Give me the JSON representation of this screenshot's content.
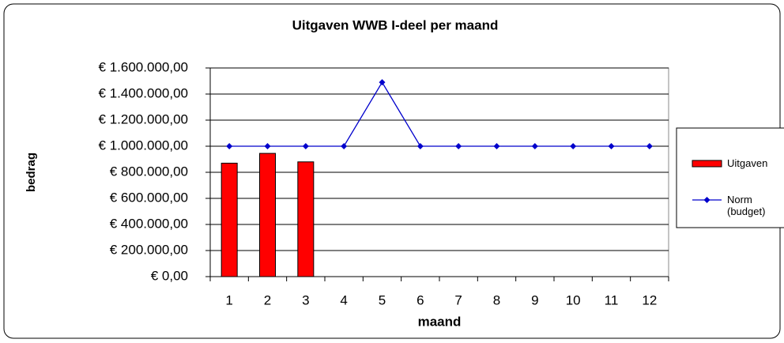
{
  "chart_data": {
    "type": "bar",
    "title": "Uitgaven WWB I-deel per maand",
    "x_label": "maand",
    "y_label": "bedrag",
    "categories": [
      "1",
      "2",
      "3",
      "4",
      "5",
      "6",
      "7",
      "8",
      "9",
      "10",
      "11",
      "12"
    ],
    "series": [
      {
        "name": "Uitgaven",
        "type": "bar",
        "color": "#ff0000",
        "values": [
          870000,
          945000,
          880000,
          null,
          null,
          null,
          null,
          null,
          null,
          null,
          null,
          null
        ]
      },
      {
        "name": "Norm (budget)",
        "type": "line",
        "color": "#0000cc",
        "values": [
          1000000,
          1000000,
          1000000,
          1000000,
          1490000,
          1000000,
          1000000,
          1000000,
          1000000,
          1000000,
          1000000,
          1000000
        ]
      }
    ],
    "ylim": [
      0,
      1600000
    ],
    "yticks": [
      {
        "value": 0,
        "label": "€ 0,00"
      },
      {
        "value": 200000,
        "label": "€ 200.000,00"
      },
      {
        "value": 400000,
        "label": "€ 400.000,00"
      },
      {
        "value": 600000,
        "label": "€ 600.000,00"
      },
      {
        "value": 800000,
        "label": "€ 800.000,00"
      },
      {
        "value": 1000000,
        "label": "€ 1.000.000,00"
      },
      {
        "value": 1200000,
        "label": "€ 1.200.000,00"
      },
      {
        "value": 1400000,
        "label": "€ 1.400.000,00"
      },
      {
        "value": 1600000,
        "label": "€ 1.600.000,00"
      }
    ],
    "grid": true,
    "legend": "right"
  }
}
